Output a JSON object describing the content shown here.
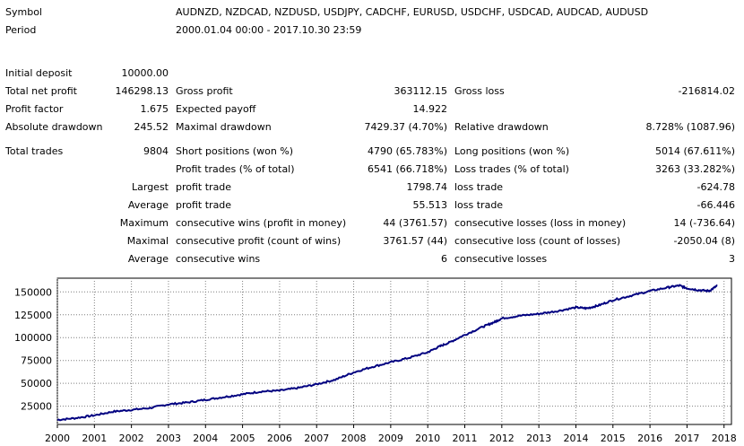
{
  "header": {
    "symbol_label": "Symbol",
    "symbol_value": "AUDNZD, NZDCAD, NZDUSD, USDJPY, CADCHF, EURUSD, USDCHF, USDCAD, AUDCAD, AUDUSD",
    "period_label": "Period",
    "period_value": "2000.01.04 00:00 - 2017.10.30 23:59"
  },
  "stats": {
    "initial_deposit_label": "Initial deposit",
    "initial_deposit": "10000.00",
    "total_net_profit_label": "Total net profit",
    "total_net_profit": "146298.13",
    "gross_profit_label": "Gross profit",
    "gross_profit": "363112.15",
    "gross_loss_label": "Gross loss",
    "gross_loss": "-216814.02",
    "profit_factor_label": "Profit factor",
    "profit_factor": "1.675",
    "expected_payoff_label": "Expected payoff",
    "expected_payoff": "14.922",
    "absolute_drawdown_label": "Absolute drawdown",
    "absolute_drawdown": "245.52",
    "maximal_drawdown_label": "Maximal drawdown",
    "maximal_drawdown": "7429.37 (4.70%)",
    "relative_drawdown_label": "Relative drawdown",
    "relative_drawdown": "8.728% (1087.96)",
    "total_trades_label": "Total trades",
    "total_trades": "9804",
    "short_positions_label": "Short positions (won %)",
    "short_positions": "4790 (65.783%)",
    "long_positions_label": "Long positions (won %)",
    "long_positions": "5014 (67.611%)",
    "profit_trades_label": "Profit trades (% of total)",
    "profit_trades": "6541 (66.718%)",
    "loss_trades_label": "Loss trades (% of total)",
    "loss_trades": "3263 (33.282%)",
    "largest_label": "Largest",
    "largest_profit_trade_label": "profit trade",
    "largest_profit_trade": "1798.74",
    "largest_loss_trade_label": "loss trade",
    "largest_loss_trade": "-624.78",
    "average_label": "Average",
    "average_profit_trade_label": "profit trade",
    "average_profit_trade": "55.513",
    "average_loss_trade_label": "loss trade",
    "average_loss_trade": "-66.446",
    "maximum_label": "Maximum",
    "max_consec_wins_label": "consecutive wins (profit in money)",
    "max_consec_wins": "44 (3761.57)",
    "max_consec_losses_label": "consecutive losses (loss in money)",
    "max_consec_losses": "14 (-736.64)",
    "maximal_label": "Maximal",
    "maximal_consec_profit_label": "consecutive profit (count of wins)",
    "maximal_consec_profit": "3761.57 (44)",
    "maximal_consec_loss_label": "consecutive loss (count of losses)",
    "maximal_consec_loss": "-2050.04 (8)",
    "average2_label": "Average",
    "avg_consec_wins_label": "consecutive wins",
    "avg_consec_wins": "6",
    "avg_consec_losses_label": "consecutive losses",
    "avg_consec_losses": "3"
  },
  "chart_data": {
    "type": "line",
    "title": "",
    "xlabel": "",
    "ylabel": "",
    "xlim": [
      2000,
      2018.2
    ],
    "ylim": [
      5000,
      165000
    ],
    "x_ticks": [
      "2000",
      "2001",
      "2002",
      "2003",
      "2004",
      "2005",
      "2006",
      "2007",
      "2008",
      "2009",
      "2010",
      "2011",
      "2012",
      "2013",
      "2014",
      "2015",
      "2016",
      "2017",
      "2018"
    ],
    "y_ticks": [
      25000,
      50000,
      75000,
      100000,
      125000,
      150000
    ],
    "grid": true,
    "line_color": "#000080",
    "series": [
      {
        "x": [
          2000.0,
          2000.5,
          2001.0,
          2001.5,
          2002.0,
          2002.5,
          2003.0,
          2003.5,
          2004.0,
          2004.5,
          2005.0,
          2005.5,
          2006.0,
          2006.5,
          2007.0,
          2007.5,
          2008.0,
          2008.5,
          2009.0,
          2009.5,
          2010.0,
          2010.3,
          2010.6,
          2011.0,
          2011.5,
          2011.8,
          2012.0,
          2012.5,
          2013.0,
          2013.5,
          2014.0,
          2014.3,
          2014.6,
          2015.0,
          2015.5,
          2016.0,
          2016.5,
          2016.8,
          2017.0,
          2017.3,
          2017.6,
          2017.82
        ],
        "y": [
          10000,
          12000,
          15000,
          19000,
          21000,
          23000,
          27000,
          29000,
          32000,
          35000,
          38000,
          41000,
          42000,
          45000,
          49000,
          54000,
          62000,
          68000,
          73000,
          78000,
          84000,
          90000,
          95000,
          103000,
          112000,
          117000,
          121000,
          124000,
          126000,
          129000,
          133000,
          132000,
          135000,
          141000,
          146000,
          151000,
          155000,
          157000,
          154000,
          152000,
          151000,
          157000
        ]
      }
    ]
  }
}
